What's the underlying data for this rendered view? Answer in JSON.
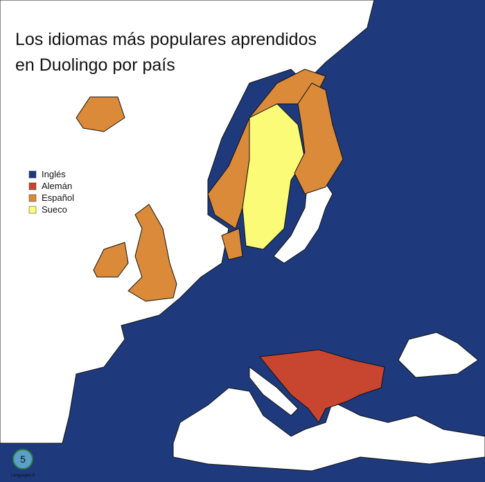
{
  "title_lines": [
    "Los idiomas más populares aprendidos",
    "en Duolingo por país"
  ],
  "legend": [
    {
      "name": "Inglés",
      "color": "#1e3a7c"
    },
    {
      "name": "Alemán",
      "color": "#c8452f"
    },
    {
      "name": "Español",
      "color": "#da8a38"
    },
    {
      "name": "Sueco",
      "color": "#fbfb78"
    }
  ],
  "logo": {
    "mark": "5",
    "text": "Languages.5"
  }
}
